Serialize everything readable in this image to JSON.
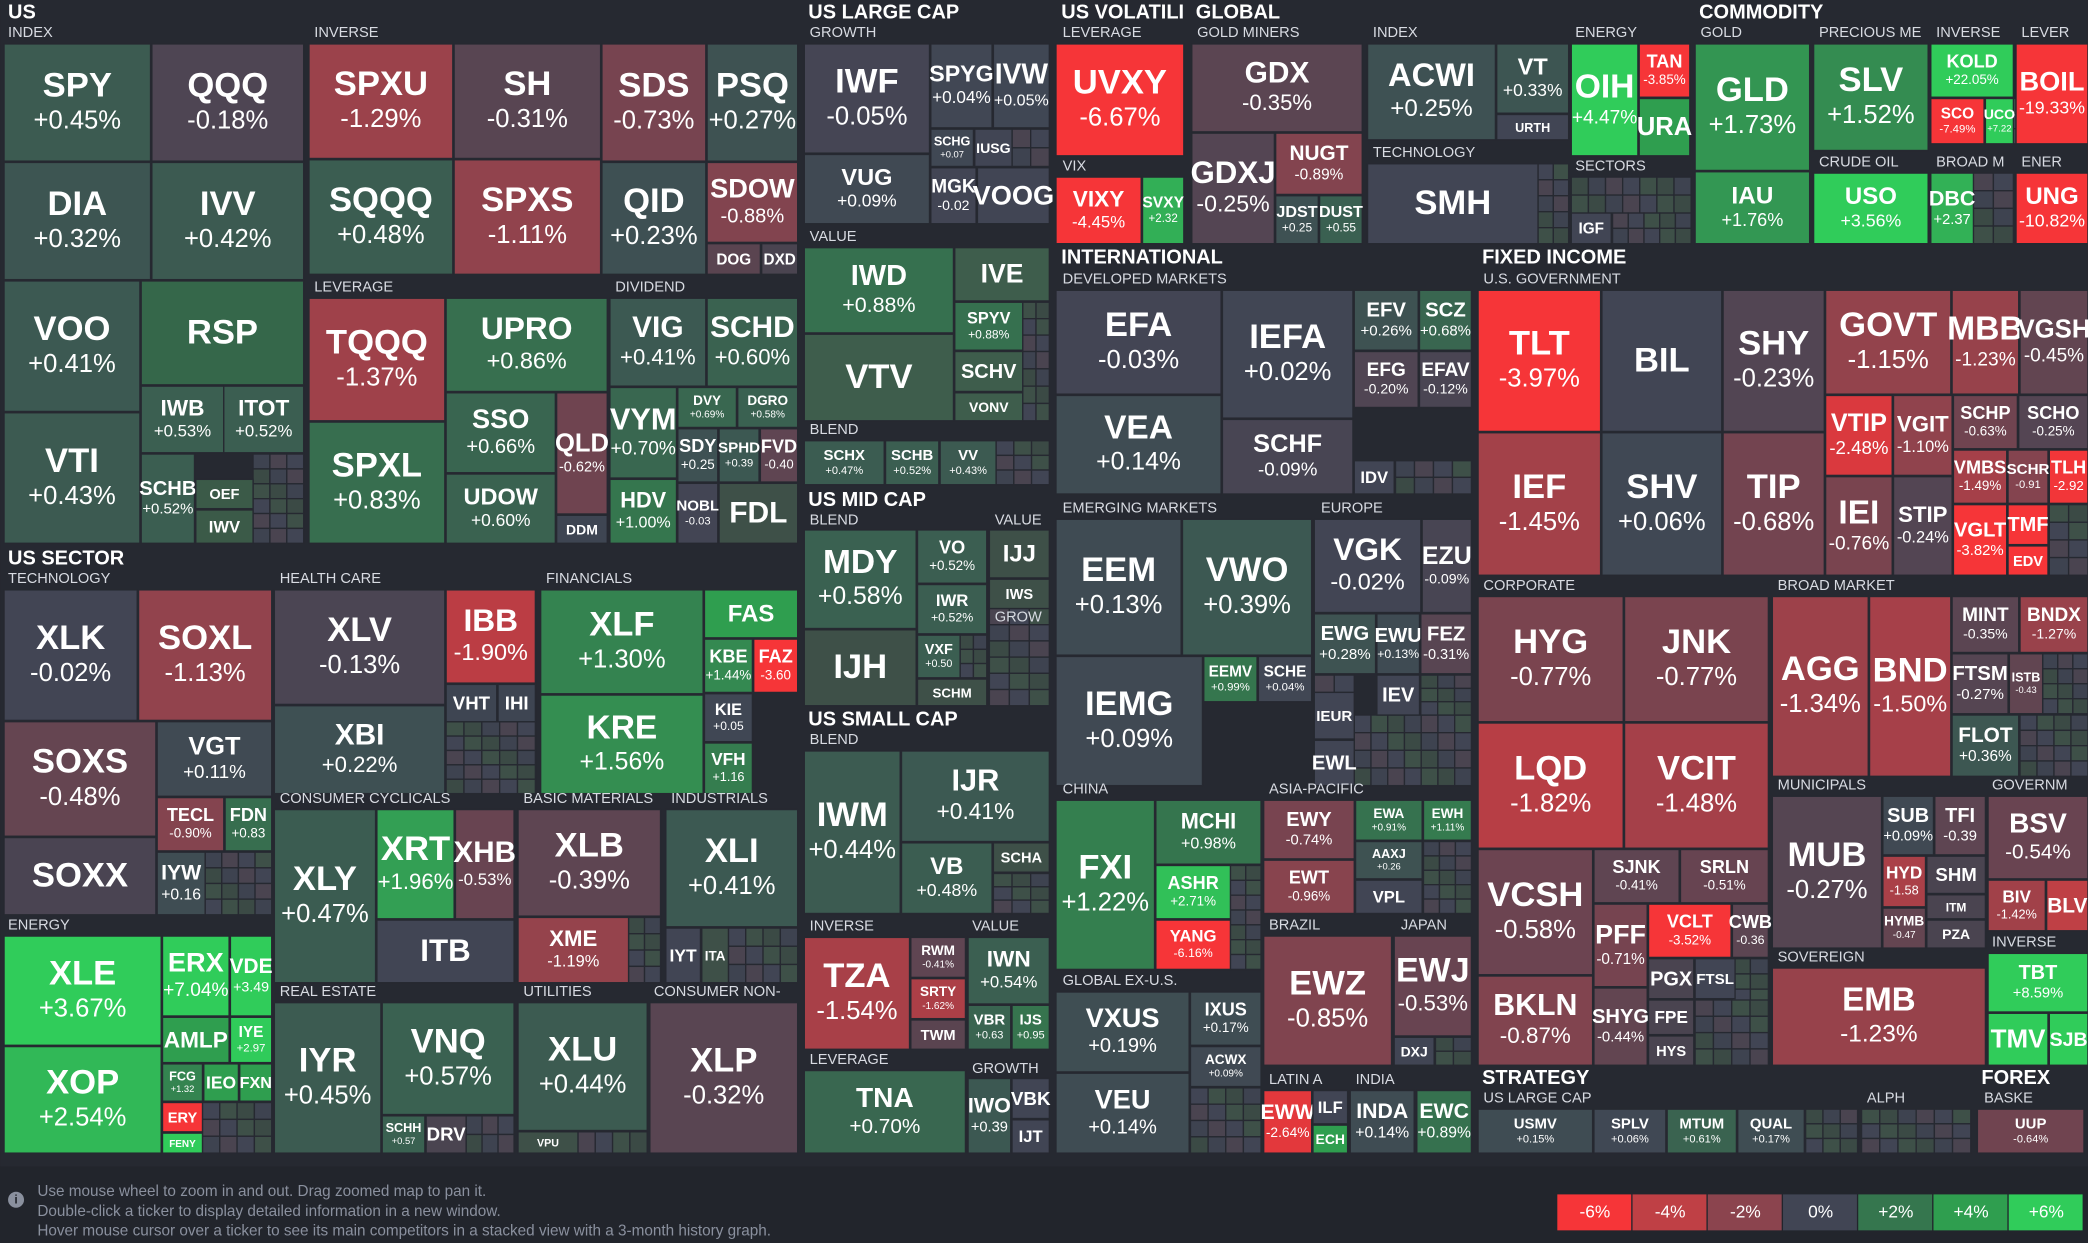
{
  "headers": [
    "US",
    "INDEX",
    "INVERSE",
    "LEVERAGE",
    "DIVIDEND",
    "US SECTOR",
    "TECHNOLOGY",
    "HEALTH CARE",
    "FINANCIALS",
    "CONSUMER CYCLICALS",
    "BASIC MATERIALS",
    "INDUSTRIALS",
    "ENERGY",
    "REAL ESTATE",
    "UTILITIES",
    "CONSUMER NON-",
    "US LARGE CAP",
    "GROWTH",
    "VALUE",
    "BLEND",
    "US MID CAP",
    "BLEND",
    "VALUE",
    "GROW",
    "US SMALL CAP",
    "BLEND",
    "INVERSE",
    "VALUE",
    "LEVERAGE",
    "GROWTH",
    "US VOLATILI",
    "LEVERAGE",
    "VIX",
    "GLOBAL",
    "GOLD MINERS",
    "INDEX",
    "TECHNOLOGY",
    "ENERGY",
    "SECTORS",
    "COMMODITY",
    "GOLD",
    "PRECIOUS ME",
    "CRUDE OIL",
    "INVERSE",
    "BROAD M",
    "LEVER",
    "ENER",
    "INTERNATIONAL",
    "DEVELOPED MARKETS",
    "EMERGING MARKETS",
    "EUROPE",
    "CHINA",
    "ASIA-PACIFIC",
    "GLOBAL EX-U.S.",
    "BRAZIL",
    "JAPAN",
    "LATIN A",
    "INDIA",
    "FIXED INCOME",
    "U.S. GOVERNMENT",
    "CORPORATE",
    "BROAD MARKET",
    "MUNICIPALS",
    "GOVERNM",
    "SOVEREIGN",
    "INVERSE",
    "STRATEGY",
    "US LARGE CAP",
    "ALPH",
    "FOREX",
    "BASKE"
  ],
  "tiles": [
    {
      "ticker": "SPY",
      "change": "+0.45%"
    },
    {
      "ticker": "QQQ",
      "change": "-0.18%"
    },
    {
      "ticker": "DIA",
      "change": "+0.32%"
    },
    {
      "ticker": "IVV",
      "change": "+0.42%"
    },
    {
      "ticker": "VOO",
      "change": "+0.41%"
    },
    {
      "ticker": "RSP",
      "color": "#35674a"
    },
    {
      "ticker": "IWB",
      "change": "+0.53%"
    },
    {
      "ticker": "ITOT",
      "change": "+0.52%"
    },
    {
      "ticker": "VTI",
      "change": "+0.43%"
    },
    {
      "ticker": "SCHB",
      "change": "+0.52%"
    },
    {
      "ticker": "OEF",
      "color": "#3b5a48"
    },
    {
      "ticker": "IWV",
      "color": "#3b5a48"
    },
    {
      "ticker": "SPXU",
      "change": "-1.29%"
    },
    {
      "ticker": "SH",
      "change": "-0.31%"
    },
    {
      "ticker": "SDS",
      "change": "-0.73%"
    },
    {
      "ticker": "PSQ",
      "change": "+0.27%"
    },
    {
      "ticker": "SQQQ",
      "change": "+0.48%"
    },
    {
      "ticker": "SPXS",
      "change": "-1.11%"
    },
    {
      "ticker": "QID",
      "change": "+0.23%"
    },
    {
      "ticker": "SDOW",
      "change": "-0.88%"
    },
    {
      "ticker": "DOG",
      "color": "#5a4450"
    },
    {
      "ticker": "DXD",
      "color": "#4a4450"
    },
    {
      "ticker": "TQQQ",
      "change": "-1.37%"
    },
    {
      "ticker": "UPRO",
      "change": "+0.86%"
    },
    {
      "ticker": "SPXL",
      "change": "+0.83%"
    },
    {
      "ticker": "SSO",
      "change": "+0.66%"
    },
    {
      "ticker": "UDOW",
      "change": "+0.60%"
    },
    {
      "ticker": "QLD",
      "change": "-0.62%"
    },
    {
      "ticker": "DDM",
      "color": "#3e4552"
    },
    {
      "ticker": "VIG",
      "change": "+0.41%"
    },
    {
      "ticker": "SCHD",
      "change": "+0.60%"
    },
    {
      "ticker": "VYM",
      "change": "+0.70%"
    },
    {
      "ticker": "DVY",
      "change": "+0.69%"
    },
    {
      "ticker": "DGRO",
      "change": "+0.58%"
    },
    {
      "ticker": "SDY",
      "change": "+0.25"
    },
    {
      "ticker": "SPHD",
      "change": "+0.39"
    },
    {
      "ticker": "FVD",
      "change": "-0.40"
    },
    {
      "ticker": "HDV",
      "change": "+1.00%"
    },
    {
      "ticker": "NOBL",
      "change": "-0.03"
    },
    {
      "ticker": "FDL",
      "color": "#3e5048"
    },
    {
      "ticker": "XLK",
      "change": "-0.02%"
    },
    {
      "ticker": "SOXL",
      "change": "-1.13%"
    },
    {
      "ticker": "SOXS",
      "change": "-0.48%"
    },
    {
      "ticker": "VGT",
      "change": "+0.11%"
    },
    {
      "ticker": "TECL",
      "change": "-0.90%"
    },
    {
      "ticker": "FDN",
      "change": "+0.83"
    },
    {
      "ticker": "SOXX",
      "color": "#4a4452"
    },
    {
      "ticker": "IYW",
      "change": "+0.16"
    },
    {
      "ticker": "XLV",
      "change": "-0.13%"
    },
    {
      "ticker": "IBB",
      "change": "-1.90%"
    },
    {
      "ticker": "XBI",
      "change": "+0.22%"
    },
    {
      "ticker": "VHT",
      "color": "#3e4552"
    },
    {
      "ticker": "IHI",
      "color": "#3e4552"
    },
    {
      "ticker": "XLF",
      "change": "+1.30%"
    },
    {
      "ticker": "FAS",
      "color": "#2f9e4f"
    },
    {
      "ticker": "KBE",
      "change": "+1.44%"
    },
    {
      "ticker": "FAZ",
      "change": "-3.60"
    },
    {
      "ticker": "KRE",
      "change": "+1.56%"
    },
    {
      "ticker": "KIE",
      "change": "+0.05"
    },
    {
      "ticker": "VFH",
      "change": "+1.16"
    },
    {
      "ticker": "XLY",
      "change": "+0.47%"
    },
    {
      "ticker": "XRT",
      "change": "+1.96%"
    },
    {
      "ticker": "XHB",
      "change": "-0.53%"
    },
    {
      "ticker": "ITB",
      "color": "#414554"
    },
    {
      "ticker": "IYR",
      "change": "+0.45%"
    },
    {
      "ticker": "VNQ",
      "change": "+0.57%"
    },
    {
      "ticker": "SCHH",
      "change": "+0.57"
    },
    {
      "ticker": "DRV",
      "color": "#4a4450"
    },
    {
      "ticker": "XLB",
      "change": "-0.39%"
    },
    {
      "ticker": "XME",
      "change": "-1.19%"
    },
    {
      "ticker": "XLI",
      "change": "+0.41%"
    },
    {
      "ticker": "IYT",
      "color": "#414554"
    },
    {
      "ticker": "ITA",
      "color": "#3e5048"
    },
    {
      "ticker": "XLU",
      "change": "+0.44%"
    },
    {
      "ticker": "VPU",
      "color": "#3e5048"
    },
    {
      "ticker": "XLP",
      "change": "-0.32%"
    },
    {
      "ticker": "XLE",
      "change": "+3.67%"
    },
    {
      "ticker": "ERX",
      "change": "+7.04%"
    },
    {
      "ticker": "VDE",
      "change": "+3.49"
    },
    {
      "ticker": "AMLP",
      "color": "#2f9e4f"
    },
    {
      "ticker": "IYE",
      "change": "+2.97"
    },
    {
      "ticker": "XOP",
      "change": "+2.54%"
    },
    {
      "ticker": "FCG",
      "change": "+1.32"
    },
    {
      "ticker": "IEO",
      "color": "#2f9e4f"
    },
    {
      "ticker": "FXN",
      "color": "#2f9e4f"
    },
    {
      "ticker": "ERY",
      "color": "#f63538"
    },
    {
      "ticker": "FENY",
      "color": "#30cc5a"
    },
    {
      "ticker": "IWF",
      "change": "-0.05%"
    },
    {
      "ticker": "SPYG",
      "change": "+0.04%"
    },
    {
      "ticker": "IVW",
      "change": "+0.05%"
    },
    {
      "ticker": "SCHG",
      "change": "+0.07"
    },
    {
      "ticker": "IUSG",
      "color": "#414554"
    },
    {
      "ticker": "VUG",
      "change": "+0.09%"
    },
    {
      "ticker": "MGK",
      "change": "-0.02"
    },
    {
      "ticker": "VOOG",
      "color": "#414554"
    },
    {
      "ticker": "IWD",
      "change": "+0.88%"
    },
    {
      "ticker": "IVE",
      "color": "#3e5d4c"
    },
    {
      "ticker": "SPYV",
      "change": "+0.88%"
    },
    {
      "ticker": "VTV",
      "color": "#3e5d4c"
    },
    {
      "ticker": "SCHV",
      "color": "#3e5d4c"
    },
    {
      "ticker": "VONV",
      "color": "#3e5d4c"
    },
    {
      "ticker": "SCHX",
      "change": "+0.47%"
    },
    {
      "ticker": "SCHB",
      "change": "+0.52%"
    },
    {
      "ticker": "VV",
      "change": "+0.43%"
    },
    {
      "ticker": "MDY",
      "change": "+0.58%"
    },
    {
      "ticker": "VO",
      "change": "+0.52%"
    },
    {
      "ticker": "IWR",
      "change": "+0.52%"
    },
    {
      "ticker": "IJH",
      "color": "#3e5048"
    },
    {
      "ticker": "VXF",
      "change": "+0.50"
    },
    {
      "ticker": "SCHM",
      "color": "#3e5048"
    },
    {
      "ticker": "IJJ",
      "color": "#3e5048"
    },
    {
      "ticker": "IWS",
      "color": "#3e5048"
    },
    {
      "ticker": "IWM",
      "change": "+0.44%"
    },
    {
      "ticker": "IJR",
      "change": "+0.41%"
    },
    {
      "ticker": "VB",
      "change": "+0.48%"
    },
    {
      "ticker": "SCHA",
      "color": "#3e5048"
    },
    {
      "ticker": "TZA",
      "change": "-1.54%"
    },
    {
      "ticker": "RWM",
      "change": "-0.41%"
    },
    {
      "ticker": "SRTY",
      "change": "-1.62%"
    },
    {
      "ticker": "TWM",
      "color": "#5a4450"
    },
    {
      "ticker": "IWN",
      "change": "+0.54%"
    },
    {
      "ticker": "VBR",
      "change": "+0.63"
    },
    {
      "ticker": "IJS",
      "change": "+0.95"
    },
    {
      "ticker": "TNA",
      "change": "+0.70%"
    },
    {
      "ticker": "IWO",
      "change": "+0.39"
    },
    {
      "ticker": "VBK",
      "color": "#414554"
    },
    {
      "ticker": "IJT",
      "color": "#414554"
    },
    {
      "ticker": "UVXY",
      "change": "-6.67%"
    },
    {
      "ticker": "VIXY",
      "change": "-4.45%"
    },
    {
      "ticker": "SVXY",
      "change": "+2.32"
    },
    {
      "ticker": "GDX",
      "change": "-0.35%"
    },
    {
      "ticker": "GDXJ",
      "change": "-0.25%"
    },
    {
      "ticker": "NUGT",
      "change": "-0.89%"
    },
    {
      "ticker": "JDST",
      "change": "+0.25"
    },
    {
      "ticker": "DUST",
      "change": "+0.55"
    },
    {
      "ticker": "ACWI",
      "change": "+0.25%"
    },
    {
      "ticker": "VT",
      "change": "+0.33%"
    },
    {
      "ticker": "URTH",
      "color": "#414554"
    },
    {
      "ticker": "SMH",
      "color": "#414554"
    },
    {
      "ticker": "OIH",
      "change": "+4.47%"
    },
    {
      "ticker": "TAN",
      "change": "-3.85%"
    },
    {
      "ticker": "URA",
      "color": "#2f9e4f"
    },
    {
      "ticker": "IGF",
      "color": "#414554"
    },
    {
      "ticker": "GLD",
      "change": "+1.73%"
    },
    {
      "ticker": "IAU",
      "change": "+1.76%"
    },
    {
      "ticker": "SLV",
      "change": "+1.52%"
    },
    {
      "ticker": "USO",
      "change": "+3.56%"
    },
    {
      "ticker": "KOLD",
      "change": "+22.05%"
    },
    {
      "ticker": "SCO",
      "change": "-7.49%"
    },
    {
      "ticker": "UCO",
      "change": "+7.22"
    },
    {
      "ticker": "DBC",
      "change": "+2.37"
    },
    {
      "ticker": "BOIL",
      "change": "-19.33%"
    },
    {
      "ticker": "UNG",
      "change": "-10.82%"
    },
    {
      "ticker": "EFA",
      "change": "-0.03%"
    },
    {
      "ticker": "IEFA",
      "change": "+0.02%"
    },
    {
      "ticker": "EFV",
      "change": "+0.26%"
    },
    {
      "ticker": "SCZ",
      "change": "+0.68%"
    },
    {
      "ticker": "EFG",
      "change": "-0.20%"
    },
    {
      "ticker": "EFAV",
      "change": "-0.12%"
    },
    {
      "ticker": "VEA",
      "change": "+0.14%"
    },
    {
      "ticker": "SCHF",
      "change": "-0.09%"
    },
    {
      "ticker": "IDV",
      "color": "#414554"
    },
    {
      "ticker": "EEM",
      "change": "+0.13%"
    },
    {
      "ticker": "VWO",
      "change": "+0.39%"
    },
    {
      "ticker": "IEMG",
      "change": "+0.09%"
    },
    {
      "ticker": "EEMV",
      "change": "+0.99%"
    },
    {
      "ticker": "SCHE",
      "change": "+0.04%"
    },
    {
      "ticker": "VGK",
      "change": "-0.02%"
    },
    {
      "ticker": "EZU",
      "change": "-0.09%"
    },
    {
      "ticker": "EWG",
      "change": "+0.28%"
    },
    {
      "ticker": "EWU",
      "change": "+0.13%"
    },
    {
      "ticker": "FEZ",
      "change": "-0.31%"
    },
    {
      "ticker": "IEV",
      "color": "#414554"
    },
    {
      "ticker": "IEUR",
      "color": "#414554"
    },
    {
      "ticker": "EWL",
      "color": "#414554"
    },
    {
      "ticker": "FXI",
      "change": "+1.22%"
    },
    {
      "ticker": "MCHI",
      "change": "+0.98%"
    },
    {
      "ticker": "ASHR",
      "change": "+2.71%"
    },
    {
      "ticker": "YANG",
      "change": "-6.16%"
    },
    {
      "ticker": "EWY",
      "change": "-0.74%"
    },
    {
      "ticker": "EWA",
      "change": "+0.91%"
    },
    {
      "ticker": "EWH",
      "change": "+1.11%"
    },
    {
      "ticker": "AAXJ",
      "change": "+0.26"
    },
    {
      "ticker": "EWT",
      "change": "-0.96%"
    },
    {
      "ticker": "VPL",
      "color": "#414554"
    },
    {
      "ticker": "VXUS",
      "change": "+0.19%"
    },
    {
      "ticker": "IXUS",
      "change": "+0.17%"
    },
    {
      "ticker": "ACWX",
      "change": "+0.09%"
    },
    {
      "ticker": "VEU",
      "change": "+0.14%"
    },
    {
      "ticker": "EWZ",
      "change": "-0.85%"
    },
    {
      "ticker": "EWJ",
      "change": "-0.53%"
    },
    {
      "ticker": "DXJ",
      "color": "#414554"
    },
    {
      "ticker": "EWW",
      "change": "-2.64%"
    },
    {
      "ticker": "ILF",
      "color": "#414554"
    },
    {
      "ticker": "ECH",
      "color": "#2f9e4f"
    },
    {
      "ticker": "INDA",
      "change": "+0.14%"
    },
    {
      "ticker": "EWC",
      "change": "+0.89%"
    },
    {
      "ticker": "TLT",
      "change": "-3.97%"
    },
    {
      "ticker": "BIL",
      "color": "#414554"
    },
    {
      "ticker": "SHY",
      "change": "-0.23%"
    },
    {
      "ticker": "GOVT",
      "change": "-1.15%"
    },
    {
      "ticker": "MBB",
      "change": "-1.23%"
    },
    {
      "ticker": "VGSH",
      "change": "-0.45%"
    },
    {
      "ticker": "IEF",
      "change": "-1.45%"
    },
    {
      "ticker": "SHV",
      "change": "+0.06%"
    },
    {
      "ticker": "TIP",
      "change": "-0.68%"
    },
    {
      "ticker": "VTIP",
      "change": "-2.48%"
    },
    {
      "ticker": "VGIT",
      "change": "-1.10%"
    },
    {
      "ticker": "SCHP",
      "change": "-0.63%"
    },
    {
      "ticker": "SCHO",
      "change": "-0.25%"
    },
    {
      "ticker": "VMBS",
      "change": "-1.49%"
    },
    {
      "ticker": "SCHR",
      "change": "-0.91"
    },
    {
      "ticker": "TLH",
      "change": "-2.92"
    },
    {
      "ticker": "IEI",
      "change": "-0.76%"
    },
    {
      "ticker": "STIP",
      "change": "-0.24%"
    },
    {
      "ticker": "VGLT",
      "change": "-3.82%"
    },
    {
      "ticker": "TMF",
      "color": "#f63538"
    },
    {
      "ticker": "EDV",
      "color": "#f63538"
    },
    {
      "ticker": "HYG",
      "change": "-0.77%"
    },
    {
      "ticker": "JNK",
      "change": "-0.77%"
    },
    {
      "ticker": "LQD",
      "change": "-1.82%"
    },
    {
      "ticker": "VCIT",
      "change": "-1.48%"
    },
    {
      "ticker": "VCSH",
      "change": "-0.58%"
    },
    {
      "ticker": "SJNK",
      "change": "-0.41%"
    },
    {
      "ticker": "SRLN",
      "change": "-0.51%"
    },
    {
      "ticker": "PFF",
      "change": "-0.71%"
    },
    {
      "ticker": "VCLT",
      "change": "-3.52%"
    },
    {
      "ticker": "CWB",
      "change": "-0.36"
    },
    {
      "ticker": "PGX",
      "color": "#4a4450"
    },
    {
      "ticker": "FTSL",
      "color": "#414554"
    },
    {
      "ticker": "BKLN",
      "change": "-0.87%"
    },
    {
      "ticker": "SHYG",
      "change": "-0.44%"
    },
    {
      "ticker": "FPE",
      "color": "#4a4450"
    },
    {
      "ticker": "HYS",
      "color": "#4a4450"
    },
    {
      "ticker": "AGG",
      "change": "-1.34%"
    },
    {
      "ticker": "BND",
      "change": "-1.50%"
    },
    {
      "ticker": "MINT",
      "change": "-0.35%"
    },
    {
      "ticker": "BNDX",
      "change": "-1.27%"
    },
    {
      "ticker": "FTSM",
      "change": "-0.27%"
    },
    {
      "ticker": "ISTB",
      "change": "-0.43"
    },
    {
      "ticker": "FLOT",
      "change": "+0.36%"
    },
    {
      "ticker": "MUB",
      "change": "-0.27%"
    },
    {
      "ticker": "SUB",
      "change": "+0.09%"
    },
    {
      "ticker": "TFI",
      "change": "-0.39"
    },
    {
      "ticker": "HYD",
      "change": "-1.58"
    },
    {
      "ticker": "SHM",
      "color": "#4a4450"
    },
    {
      "ticker": "ITM",
      "color": "#4a4450"
    },
    {
      "ticker": "HYMB",
      "change": "-0.47"
    },
    {
      "ticker": "PZA",
      "color": "#4a4450"
    },
    {
      "ticker": "BSV",
      "change": "-0.54%"
    },
    {
      "ticker": "BIV",
      "change": "-1.42%"
    },
    {
      "ticker": "BLV",
      "color": "#bf4045"
    },
    {
      "ticker": "EMB",
      "change": "-1.23%"
    },
    {
      "ticker": "TBT",
      "change": "+8.59%"
    },
    {
      "ticker": "TMV",
      "color": "#30cc5a"
    },
    {
      "ticker": "SJB",
      "color": "#30cc5a"
    },
    {
      "ticker": "USMV",
      "change": "+0.15%"
    },
    {
      "ticker": "SPLV",
      "change": "+0.06%"
    },
    {
      "ticker": "MTUM",
      "change": "+0.61%"
    },
    {
      "ticker": "QUAL",
      "change": "+0.17%"
    },
    {
      "ticker": "UUP",
      "change": "-0.64%"
    }
  ],
  "footer": [
    "Use mouse wheel to zoom in and out. Drag zoomed map to pan it.",
    "Double-click a ticker to display detailed information in a new window.",
    "Hover mouse cursor over a ticker to see its main competitors in a stacked view with a 3-month history graph."
  ],
  "legend": [
    {
      "label": "-6%",
      "color": "#f63538"
    },
    {
      "label": "-4%",
      "color": "#bf4045"
    },
    {
      "label": "-2%",
      "color": "#8b444e"
    },
    {
      "label": "0%",
      "color": "#414554"
    },
    {
      "label": "+2%",
      "color": "#35764e"
    },
    {
      "label": "+4%",
      "color": "#2f9e4f"
    },
    {
      "label": "+6%",
      "color": "#30cc5a"
    }
  ]
}
